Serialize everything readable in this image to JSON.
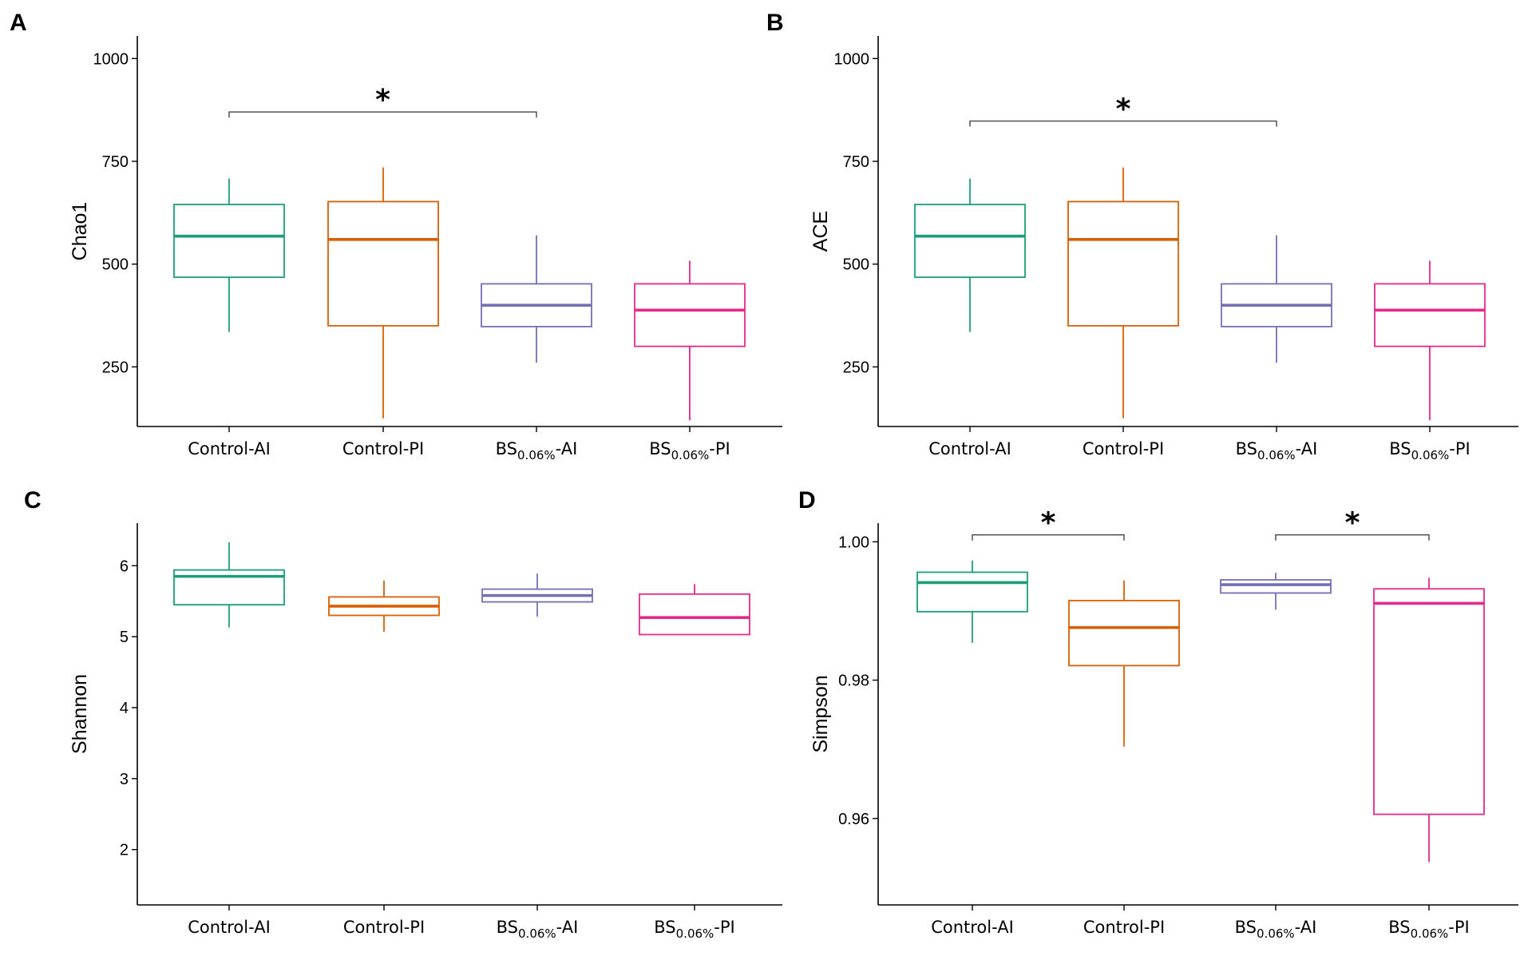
{
  "colors": [
    "#1b9e77",
    "#d95f02",
    "#7570b3",
    "#e7298a"
  ],
  "chart_data": [
    {
      "panel": "A",
      "type": "box",
      "ylabel": "Chao1",
      "ylim": [
        105,
        1055
      ],
      "yticks": [
        250,
        500,
        750,
        1000
      ],
      "tick_labels": [
        "250",
        "500",
        "750",
        "1000"
      ],
      "decimals": 0,
      "categories": [
        {
          "main": "Control-AI"
        },
        {
          "main": "Control-PI"
        },
        {
          "main": "BS",
          "sub": "0.06%",
          "tail": "-AI"
        },
        {
          "main": "BS",
          "sub": "0.06%",
          "tail": "-PI"
        }
      ],
      "boxes": [
        {
          "min": 335,
          "q1": 468,
          "median": 568,
          "q3": 645,
          "max": 708
        },
        {
          "min": 125,
          "q1": 350,
          "median": 560,
          "q3": 652,
          "max": 735
        },
        {
          "min": 260,
          "q1": 348,
          "median": 400,
          "q3": 452,
          "max": 570
        },
        {
          "min": 120,
          "q1": 300,
          "median": 388,
          "q3": 452,
          "max": 508
        }
      ],
      "significance": [
        {
          "from": 0,
          "to": 2,
          "y": 870,
          "label": "*"
        }
      ]
    },
    {
      "panel": "B",
      "type": "box",
      "ylabel": "ACE",
      "ylim": [
        105,
        1055
      ],
      "yticks": [
        250,
        500,
        750,
        1000
      ],
      "tick_labels": [
        "250",
        "500",
        "750",
        "1000"
      ],
      "decimals": 0,
      "categories": [
        {
          "main": "Control-AI"
        },
        {
          "main": "Control-PI"
        },
        {
          "main": "BS",
          "sub": "0.06%",
          "tail": "-AI"
        },
        {
          "main": "BS",
          "sub": "0.06%",
          "tail": "-PI"
        }
      ],
      "boxes": [
        {
          "min": 335,
          "q1": 468,
          "median": 568,
          "q3": 645,
          "max": 708
        },
        {
          "min": 125,
          "q1": 350,
          "median": 560,
          "q3": 652,
          "max": 735
        },
        {
          "min": 260,
          "q1": 348,
          "median": 400,
          "q3": 452,
          "max": 570
        },
        {
          "min": 120,
          "q1": 300,
          "median": 388,
          "q3": 452,
          "max": 508
        }
      ],
      "significance": [
        {
          "from": 0,
          "to": 2,
          "y": 848,
          "label": "*"
        }
      ]
    },
    {
      "panel": "C",
      "type": "box",
      "ylabel": "Shannon",
      "ylim": [
        1.22,
        6.6
      ],
      "yticks": [
        2,
        3,
        4,
        5,
        6
      ],
      "tick_labels": [
        "2",
        "3",
        "4",
        "5",
        "6"
      ],
      "decimals": 2,
      "categories": [
        {
          "main": "Control-AI"
        },
        {
          "main": "Control-PI"
        },
        {
          "main": "BS",
          "sub": "0.06%",
          "tail": "-AI"
        },
        {
          "main": "BS",
          "sub": "0.06%",
          "tail": "-PI"
        }
      ],
      "boxes": [
        {
          "min": 5.13,
          "q1": 5.45,
          "median": 5.85,
          "q3": 5.94,
          "max": 6.33
        },
        {
          "min": 5.07,
          "q1": 5.3,
          "median": 5.43,
          "q3": 5.56,
          "max": 5.79
        },
        {
          "min": 5.28,
          "q1": 5.49,
          "median": 5.58,
          "q3": 5.67,
          "max": 5.89
        },
        {
          "min": 5.03,
          "q1": 5.03,
          "median": 5.27,
          "q3": 5.6,
          "max": 5.74
        }
      ],
      "significance": []
    },
    {
      "panel": "D",
      "type": "box",
      "ylabel": "Simpson",
      "ylim": [
        0.9475,
        1.0027
      ],
      "yticks": [
        0.96,
        0.98,
        1.0
      ],
      "tick_labels": [
        "0.96",
        "0.98",
        "1.00"
      ],
      "decimals": 4,
      "categories": [
        {
          "main": "Control-AI"
        },
        {
          "main": "Control-PI"
        },
        {
          "main": "BS",
          "sub": "0.06%",
          "tail": "-AI"
        },
        {
          "main": "BS",
          "sub": "0.06%",
          "tail": "-PI"
        }
      ],
      "boxes": [
        {
          "min": 0.9854,
          "q1": 0.9899,
          "median": 0.9941,
          "q3": 0.9956,
          "max": 0.9973
        },
        {
          "min": 0.9704,
          "q1": 0.9821,
          "median": 0.9876,
          "q3": 0.9915,
          "max": 0.9944
        },
        {
          "min": 0.9902,
          "q1": 0.9926,
          "median": 0.9938,
          "q3": 0.9945,
          "max": 0.9955
        },
        {
          "min": 0.9537,
          "q1": 0.9606,
          "median": 0.9911,
          "q3": 0.9932,
          "max": 0.9948
        }
      ],
      "significance": [
        {
          "from": 0,
          "to": 1,
          "y": 1.001,
          "label": "*"
        },
        {
          "from": 2,
          "to": 3,
          "y": 1.001,
          "label": "*"
        }
      ]
    }
  ]
}
